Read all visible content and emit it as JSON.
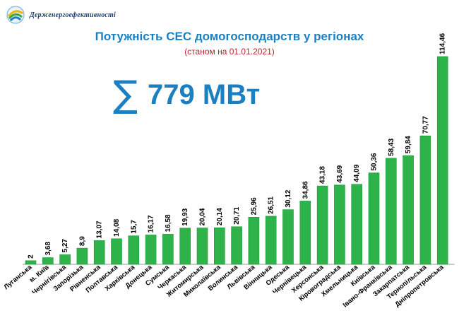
{
  "header": {
    "logo_text": "Держенергоефективності"
  },
  "title": "Потужність СЕС домогосподарств у регіонах",
  "subtitle": "(станом на 01.01.2021)",
  "summary": {
    "symbol": "∑",
    "value": "779 МВт"
  },
  "colors": {
    "bar": "#2db34a",
    "bar_edge": "#1f9a3a",
    "title": "#1b7fc2",
    "subtitle": "#b8252a"
  },
  "chart_data": {
    "type": "bar",
    "title": "Потужність СЕС домогосподарств у регіонах",
    "categories": [
      "Луганська",
      "м. Київ",
      "Чернігівська",
      "Запорізька",
      "Рівненська",
      "Полтавська",
      "Харківська",
      "Донецька",
      "Сумська",
      "Черкаська",
      "Житомирська",
      "Миколаївська",
      "Волинська",
      "Львівська",
      "Вінницька",
      "Одеська",
      "Чернівецька",
      "Херсонська",
      "Кіровоградська",
      "Хмельницька",
      "Київська",
      "Івано-Франківська",
      "Закарпатська",
      "Тернопільська",
      "Дніпропетровська"
    ],
    "values": [
      2,
      3.68,
      5.27,
      8.9,
      13.07,
      14.08,
      15.7,
      16.17,
      16.58,
      19.93,
      20.04,
      20.14,
      20.71,
      25.96,
      26.51,
      30.12,
      34.86,
      43.18,
      43.69,
      44.09,
      50.36,
      58.43,
      59.84,
      70.77,
      114.46
    ],
    "value_labels": [
      "2",
      "3,68",
      "5,27",
      "8,9",
      "13,07",
      "14,08",
      "15,7",
      "16,17",
      "16,58",
      "19,93",
      "20,04",
      "20,14",
      "20,71",
      "25,96",
      "26,51",
      "30,12",
      "34,86",
      "43,18",
      "43,69",
      "44,09",
      "50,36",
      "58,43",
      "59,84",
      "70,77",
      "114,46"
    ],
    "ylim": [
      0,
      114.46
    ],
    "grid": false,
    "legend": "none"
  }
}
